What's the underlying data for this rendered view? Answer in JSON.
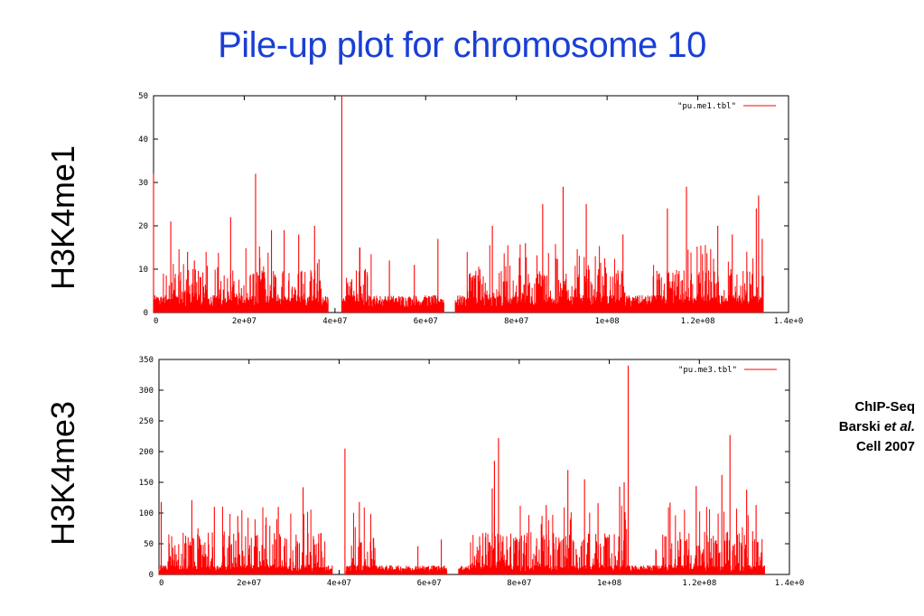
{
  "title": "Pile-up plot for chromosome 10",
  "credit": {
    "line1": "ChIP-Seq",
    "line2_a": "Barski ",
    "line2_b": "et al.",
    "line3": "Cell 2007"
  },
  "panels": [
    {
      "side_label": "H3K4me1"
    },
    {
      "side_label": "H3K4me3"
    }
  ],
  "colors": {
    "title": "#1a3fd6",
    "series": "#ff0000"
  },
  "chart_data": [
    {
      "type": "line",
      "legend": "\"pu.me1.tbl\"",
      "legend_position": "top-right",
      "xlim": [
        0,
        140000000
      ],
      "ylim": [
        0,
        50
      ],
      "xticks": [
        "0",
        "2e+07",
        "4e+07",
        "6e+07",
        "8e+07",
        "1e+08",
        "1.2e+08",
        "1.4e+0"
      ],
      "yticks": [
        "0",
        "10",
        "20",
        "30",
        "40",
        "50"
      ],
      "baseline_max": 4,
      "gaps": [
        [
          38500000,
          41500000
        ],
        [
          64000000,
          66500000
        ]
      ],
      "end": 134500000,
      "dense_regions": [
        [
          2000000,
          12000000
        ],
        [
          13500000,
          37000000
        ],
        [
          42500000,
          48500000
        ],
        [
          69000000,
          104000000
        ],
        [
          110000000,
          134500000
        ]
      ],
      "peaks": [
        {
          "x": 0,
          "y": 32
        },
        {
          "x": 3800000,
          "y": 21
        },
        {
          "x": 7500000,
          "y": 14
        },
        {
          "x": 9000000,
          "y": 12
        },
        {
          "x": 17000000,
          "y": 22
        },
        {
          "x": 22500000,
          "y": 32
        },
        {
          "x": 26000000,
          "y": 19
        },
        {
          "x": 28800000,
          "y": 19
        },
        {
          "x": 32000000,
          "y": 18
        },
        {
          "x": 35500000,
          "y": 20
        },
        {
          "x": 41500000,
          "y": 50
        },
        {
          "x": 45500000,
          "y": 15
        },
        {
          "x": 52000000,
          "y": 12
        },
        {
          "x": 57500000,
          "y": 11
        },
        {
          "x": 62700000,
          "y": 17
        },
        {
          "x": 74700000,
          "y": 20
        },
        {
          "x": 82000000,
          "y": 16
        },
        {
          "x": 85800000,
          "y": 25
        },
        {
          "x": 90300000,
          "y": 29
        },
        {
          "x": 95400000,
          "y": 25
        },
        {
          "x": 103500000,
          "y": 18
        },
        {
          "x": 113300000,
          "y": 24
        },
        {
          "x": 117500000,
          "y": 29
        },
        {
          "x": 124400000,
          "y": 20
        },
        {
          "x": 127600000,
          "y": 18
        },
        {
          "x": 132900000,
          "y": 24
        },
        {
          "x": 133400000,
          "y": 27
        },
        {
          "x": 134200000,
          "y": 17
        }
      ]
    },
    {
      "type": "line",
      "legend": "\"pu.me3.tbl\"",
      "legend_position": "top-right",
      "xlim": [
        0,
        140000000
      ],
      "ylim": [
        0,
        350
      ],
      "xticks": [
        "0",
        "2e+07",
        "4e+07",
        "6e+07",
        "8e+07",
        "1e+08",
        "1.2e+08",
        "1.4e+0"
      ],
      "yticks": [
        "0",
        "50",
        "100",
        "150",
        "200",
        "250",
        "300",
        "350"
      ],
      "baseline_max": 15,
      "gaps": [
        [
          38500000,
          41500000
        ],
        [
          64000000,
          66500000
        ]
      ],
      "end": 134500000,
      "dense_regions": [
        [
          2000000,
          12000000
        ],
        [
          14000000,
          37000000
        ],
        [
          42500000,
          48500000
        ],
        [
          69000000,
          104000000
        ],
        [
          110000000,
          134500000
        ]
      ],
      "peaks": [
        {
          "x": 500000,
          "y": 118
        },
        {
          "x": 7300000,
          "y": 121
        },
        {
          "x": 12300000,
          "y": 110
        },
        {
          "x": 17500000,
          "y": 95
        },
        {
          "x": 23800000,
          "y": 93
        },
        {
          "x": 26500000,
          "y": 110
        },
        {
          "x": 32000000,
          "y": 142
        },
        {
          "x": 41300000,
          "y": 205
        },
        {
          "x": 44500000,
          "y": 118
        },
        {
          "x": 57500000,
          "y": 46
        },
        {
          "x": 62700000,
          "y": 57
        },
        {
          "x": 74000000,
          "y": 140
        },
        {
          "x": 74500000,
          "y": 185
        },
        {
          "x": 75400000,
          "y": 222
        },
        {
          "x": 86000000,
          "y": 113
        },
        {
          "x": 90800000,
          "y": 170
        },
        {
          "x": 94500000,
          "y": 155
        },
        {
          "x": 97500000,
          "y": 116
        },
        {
          "x": 102300000,
          "y": 143
        },
        {
          "x": 103300000,
          "y": 150
        },
        {
          "x": 104200000,
          "y": 340
        },
        {
          "x": 113500000,
          "y": 117
        },
        {
          "x": 119300000,
          "y": 144
        },
        {
          "x": 125000000,
          "y": 162
        },
        {
          "x": 126800000,
          "y": 227
        },
        {
          "x": 130500000,
          "y": 138
        },
        {
          "x": 132600000,
          "y": 113
        }
      ]
    }
  ]
}
